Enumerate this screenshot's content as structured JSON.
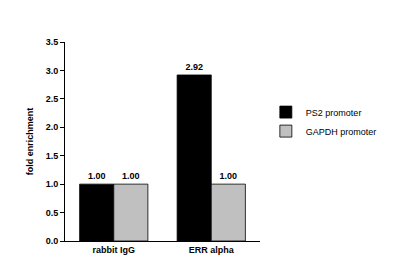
{
  "chart_data": {
    "type": "bar",
    "y_label": "fold enrichment",
    "categories": [
      "rabbit IgG",
      "ERR alpha"
    ],
    "series": [
      {
        "name": "PS2 promoter",
        "color": "#000000",
        "values": [
          1.0,
          2.92
        ],
        "value_labels": [
          "1.00",
          "2.92"
        ]
      },
      {
        "name": "GAPDH promoter",
        "color": "#c0c0c0",
        "values": [
          1.0,
          1.0
        ],
        "value_labels": [
          "1.00",
          "1.00"
        ]
      }
    ],
    "ylim": [
      0,
      3.5
    ],
    "yticks": [
      {
        "value": 0,
        "label": "0.0"
      },
      {
        "value": 0.5,
        "label": "0.5"
      },
      {
        "value": 1,
        "label": "1.0"
      },
      {
        "value": 1.5,
        "label": "1.5"
      },
      {
        "value": 2,
        "label": "2.0"
      },
      {
        "value": 2.5,
        "label": "2.5"
      },
      {
        "value": 3,
        "label": "3.0"
      },
      {
        "value": 3.5,
        "label": "3.5"
      }
    ],
    "grid": false,
    "legend": "right",
    "data_labels": true
  }
}
